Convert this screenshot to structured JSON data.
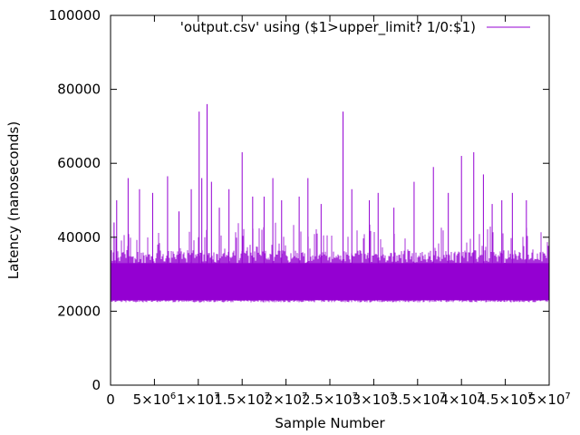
{
  "chart_data": {
    "type": "line",
    "title": "",
    "xlabel": "Sample Number",
    "ylabel": "Latency (nanoseconds)",
    "xlim": [
      0,
      50000000
    ],
    "ylim": [
      0,
      100000
    ],
    "x_range": [
      0,
      47500000
    ],
    "x_ticks": [
      {
        "value": 0,
        "mantissa": "0",
        "exp": ""
      },
      {
        "value": 5000000,
        "mantissa": "5×10",
        "exp": "6"
      },
      {
        "value": 10000000,
        "mantissa": "1×10",
        "exp": "7"
      },
      {
        "value": 15000000,
        "mantissa": "1.5×10",
        "exp": "7"
      },
      {
        "value": 20000000,
        "mantissa": "2×10",
        "exp": "7"
      },
      {
        "value": 25000000,
        "mantissa": "2.5×10",
        "exp": "7"
      },
      {
        "value": 30000000,
        "mantissa": "3×10",
        "exp": "7"
      },
      {
        "value": 35000000,
        "mantissa": "3.5×10",
        "exp": "7"
      },
      {
        "value": 40000000,
        "mantissa": "4×10",
        "exp": "7"
      },
      {
        "value": 45000000,
        "mantissa": "4.5×10",
        "exp": "7"
      },
      {
        "value": 50000000,
        "mantissa": "5×10",
        "exp": "7"
      }
    ],
    "y_ticks": [
      {
        "value": 0,
        "label": "0"
      },
      {
        "value": 20000,
        "label": "20000"
      },
      {
        "value": 40000,
        "label": "40000"
      },
      {
        "value": 60000,
        "label": "60000"
      },
      {
        "value": 80000,
        "label": "80000"
      },
      {
        "value": 100000,
        "label": "100000"
      }
    ],
    "grid": false,
    "legend_position": "top-right",
    "series": [
      {
        "name": "'output.csv' using ($1>upper_limit? 1/0:$1)",
        "color": "#9400d3",
        "band_low": 23000,
        "band_high": 33000,
        "spikes": [
          {
            "x": 400000,
            "y": 44000
          },
          {
            "x": 700000,
            "y": 50000
          },
          {
            "x": 2000000,
            "y": 56000
          },
          {
            "x": 3300000,
            "y": 53000
          },
          {
            "x": 4800000,
            "y": 52000
          },
          {
            "x": 6500000,
            "y": 56500
          },
          {
            "x": 7800000,
            "y": 47000
          },
          {
            "x": 9200000,
            "y": 53000
          },
          {
            "x": 10100000,
            "y": 74000
          },
          {
            "x": 10400000,
            "y": 56000
          },
          {
            "x": 11000000,
            "y": 76000
          },
          {
            "x": 11500000,
            "y": 55000
          },
          {
            "x": 12400000,
            "y": 48000
          },
          {
            "x": 13500000,
            "y": 53000
          },
          {
            "x": 15000000,
            "y": 63000
          },
          {
            "x": 16200000,
            "y": 51000
          },
          {
            "x": 17500000,
            "y": 51000
          },
          {
            "x": 18500000,
            "y": 56000
          },
          {
            "x": 19500000,
            "y": 50000
          },
          {
            "x": 21500000,
            "y": 51000
          },
          {
            "x": 22500000,
            "y": 56000
          },
          {
            "x": 24000000,
            "y": 49000
          },
          {
            "x": 26500000,
            "y": 74000
          },
          {
            "x": 27500000,
            "y": 53000
          },
          {
            "x": 29500000,
            "y": 50000
          },
          {
            "x": 30500000,
            "y": 52000
          },
          {
            "x": 32300000,
            "y": 48000
          },
          {
            "x": 34600000,
            "y": 55000
          },
          {
            "x": 36800000,
            "y": 59000
          },
          {
            "x": 38500000,
            "y": 52000
          },
          {
            "x": 40000000,
            "y": 62000
          },
          {
            "x": 41400000,
            "y": 63000
          },
          {
            "x": 42500000,
            "y": 57000
          },
          {
            "x": 43500000,
            "y": 49000
          },
          {
            "x": 44600000,
            "y": 50000
          },
          {
            "x": 45800000,
            "y": 52000
          },
          {
            "x": 47400000,
            "y": 50000
          }
        ]
      }
    ]
  }
}
